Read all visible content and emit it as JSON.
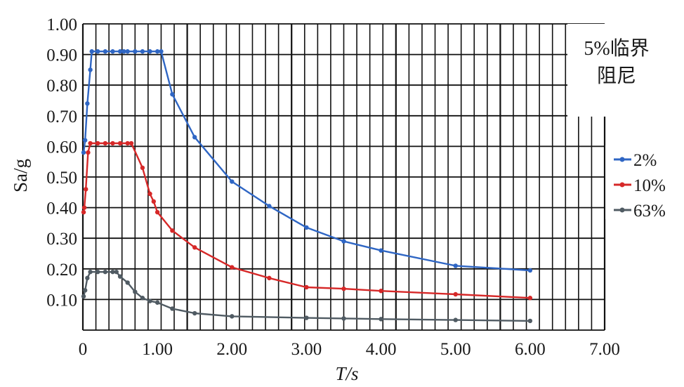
{
  "chart_data": {
    "type": "line",
    "xlabel": "T/s",
    "ylabel": "Sa/g",
    "annotation": [
      "5%临界",
      "阻尼"
    ],
    "xlim": [
      0,
      7
    ],
    "ylim": [
      0,
      1
    ],
    "x_ticks": [
      {
        "value": 0,
        "label": "0"
      },
      {
        "value": 1,
        "label": "1.00"
      },
      {
        "value": 2,
        "label": "2.00"
      },
      {
        "value": 3,
        "label": "3.00"
      },
      {
        "value": 4,
        "label": "4.00"
      },
      {
        "value": 5,
        "label": "5.00"
      },
      {
        "value": 6,
        "label": "6.00"
      },
      {
        "value": 7,
        "label": "7.00"
      }
    ],
    "y_ticks": [
      {
        "value": 0.1,
        "label": "0.10"
      },
      {
        "value": 0.2,
        "label": "0.20"
      },
      {
        "value": 0.3,
        "label": "0.30"
      },
      {
        "value": 0.4,
        "label": "0.40"
      },
      {
        "value": 0.5,
        "label": "0.50"
      },
      {
        "value": 0.6,
        "label": "0.60"
      },
      {
        "value": 0.7,
        "label": "0.70"
      },
      {
        "value": 0.8,
        "label": "0.80"
      },
      {
        "value": 0.9,
        "label": "0.90"
      },
      {
        "value": 1.0,
        "label": "1.00"
      }
    ],
    "grid": true,
    "legend": "right",
    "series": [
      {
        "name": "2%",
        "color": "#2f66c4",
        "points": [
          [
            0.01,
            0.58
          ],
          [
            0.03,
            0.62
          ],
          [
            0.06,
            0.74
          ],
          [
            0.1,
            0.85
          ],
          [
            0.12,
            0.91
          ],
          [
            0.2,
            0.91
          ],
          [
            0.3,
            0.91
          ],
          [
            0.4,
            0.91
          ],
          [
            0.5,
            0.91
          ],
          [
            0.55,
            0.91
          ],
          [
            0.6,
            0.91
          ],
          [
            0.7,
            0.91
          ],
          [
            0.8,
            0.91
          ],
          [
            0.9,
            0.91
          ],
          [
            1.0,
            0.91
          ],
          [
            1.05,
            0.91
          ],
          [
            1.2,
            0.77
          ],
          [
            1.5,
            0.63
          ],
          [
            2.0,
            0.485
          ],
          [
            2.5,
            0.405
          ],
          [
            3.0,
            0.335
          ],
          [
            3.5,
            0.29
          ],
          [
            4.0,
            0.26
          ],
          [
            5.0,
            0.21
          ],
          [
            6.0,
            0.195
          ]
        ]
      },
      {
        "name": "10%",
        "color": "#d62828",
        "points": [
          [
            0.01,
            0.385
          ],
          [
            0.02,
            0.4
          ],
          [
            0.04,
            0.46
          ],
          [
            0.07,
            0.58
          ],
          [
            0.1,
            0.61
          ],
          [
            0.2,
            0.61
          ],
          [
            0.3,
            0.61
          ],
          [
            0.4,
            0.61
          ],
          [
            0.5,
            0.61
          ],
          [
            0.6,
            0.61
          ],
          [
            0.65,
            0.61
          ],
          [
            0.8,
            0.53
          ],
          [
            0.9,
            0.445
          ],
          [
            0.95,
            0.42
          ],
          [
            1.0,
            0.385
          ],
          [
            1.2,
            0.325
          ],
          [
            1.5,
            0.27
          ],
          [
            2.0,
            0.205
          ],
          [
            2.5,
            0.17
          ],
          [
            3.0,
            0.14
          ],
          [
            3.5,
            0.135
          ],
          [
            4.0,
            0.128
          ],
          [
            5.0,
            0.117
          ],
          [
            6.0,
            0.105
          ]
        ]
      },
      {
        "name": "63%",
        "color": "#505b63",
        "points": [
          [
            0.01,
            0.11
          ],
          [
            0.03,
            0.13
          ],
          [
            0.06,
            0.17
          ],
          [
            0.1,
            0.19
          ],
          [
            0.2,
            0.19
          ],
          [
            0.3,
            0.19
          ],
          [
            0.4,
            0.19
          ],
          [
            0.45,
            0.19
          ],
          [
            0.5,
            0.175
          ],
          [
            0.6,
            0.155
          ],
          [
            0.7,
            0.125
          ],
          [
            0.8,
            0.105
          ],
          [
            0.9,
            0.095
          ],
          [
            1.0,
            0.09
          ],
          [
            1.2,
            0.07
          ],
          [
            1.5,
            0.055
          ],
          [
            2.0,
            0.045
          ],
          [
            3.0,
            0.04
          ],
          [
            3.5,
            0.038
          ],
          [
            4.0,
            0.036
          ],
          [
            5.0,
            0.033
          ],
          [
            6.0,
            0.03
          ]
        ]
      }
    ]
  }
}
